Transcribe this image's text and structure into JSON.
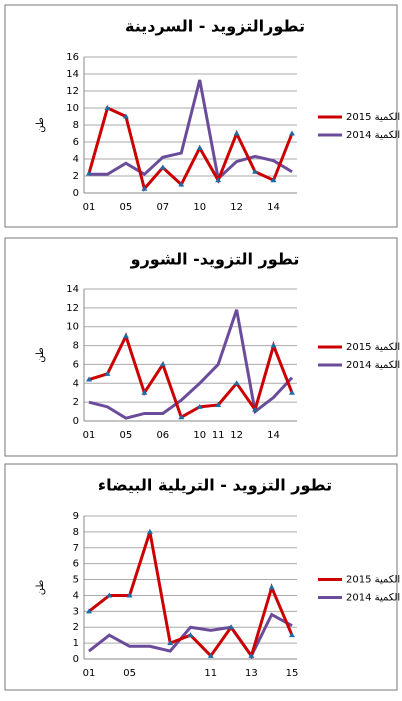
{
  "chart_data": [
    {
      "type": "line",
      "title": "تطورالتزويد - السردينة",
      "y_label": "طن",
      "categories": [
        "01",
        null,
        "05",
        null,
        "07",
        null,
        "10",
        null,
        "12",
        null,
        "14",
        null
      ],
      "series": [
        {
          "name": "الكمية 2015",
          "color": "#cc0000",
          "values": [
            2.3,
            10,
            9,
            0.5,
            3,
            1,
            5.3,
            1.5,
            7,
            2.5,
            1.5,
            7
          ]
        },
        {
          "name": "الكمية 2014",
          "color": "#6b4c9a",
          "values": [
            2.2,
            2.2,
            3.5,
            2.2,
            4.2,
            4.7,
            13.3,
            1.7,
            3.7,
            4.3,
            3.8,
            2.5
          ]
        }
      ],
      "ylim": [
        0,
        16
      ],
      "yticks": [
        0,
        2,
        4,
        6,
        8,
        10,
        12,
        14,
        16
      ],
      "grid": true
    },
    {
      "type": "line",
      "title": "تطور التزويد- الشورو",
      "y_label": "طن",
      "categories": [
        "01",
        null,
        "05",
        null,
        "06",
        null,
        "10",
        "11",
        "12",
        null,
        "14",
        null
      ],
      "series": [
        {
          "name": "الكمية 2015",
          "color": "#cc0000",
          "values": [
            4.4,
            5,
            9,
            3,
            6,
            0.4,
            1.5,
            1.7,
            4,
            1.2,
            8,
            3
          ]
        },
        {
          "name": "الكمية 2014",
          "color": "#6b4c9a",
          "values": [
            2,
            1.5,
            0.3,
            0.8,
            0.8,
            2.2,
            4,
            6,
            11.8,
            1,
            2.5,
            4.6
          ]
        }
      ],
      "ylim": [
        0,
        14
      ],
      "yticks": [
        0,
        2,
        4,
        6,
        8,
        10,
        12,
        14
      ],
      "grid": true
    },
    {
      "type": "line",
      "title": "تطور التزويد - التريلية البيضاء",
      "y_label": "طن",
      "categories": [
        "01",
        null,
        "05",
        null,
        null,
        null,
        "11",
        null,
        "13",
        null,
        "15"
      ],
      "series": [
        {
          "name": "الكمية 2015",
          "color": "#cc0000",
          "values": [
            3,
            4,
            4,
            8,
            1,
            1.5,
            0.2,
            2,
            0.2,
            4.5,
            1.5
          ]
        },
        {
          "name": "الكمية 2014",
          "color": "#6b4c9a",
          "values": [
            0.5,
            1.5,
            0.8,
            0.8,
            0.5,
            2,
            1.8,
            2,
            0.2,
            2.8,
            2.1
          ]
        }
      ],
      "ylim": [
        0,
        9
      ],
      "yticks": [
        0,
        1,
        2,
        3,
        4,
        5,
        6,
        7,
        8,
        9
      ],
      "grid": true
    }
  ]
}
